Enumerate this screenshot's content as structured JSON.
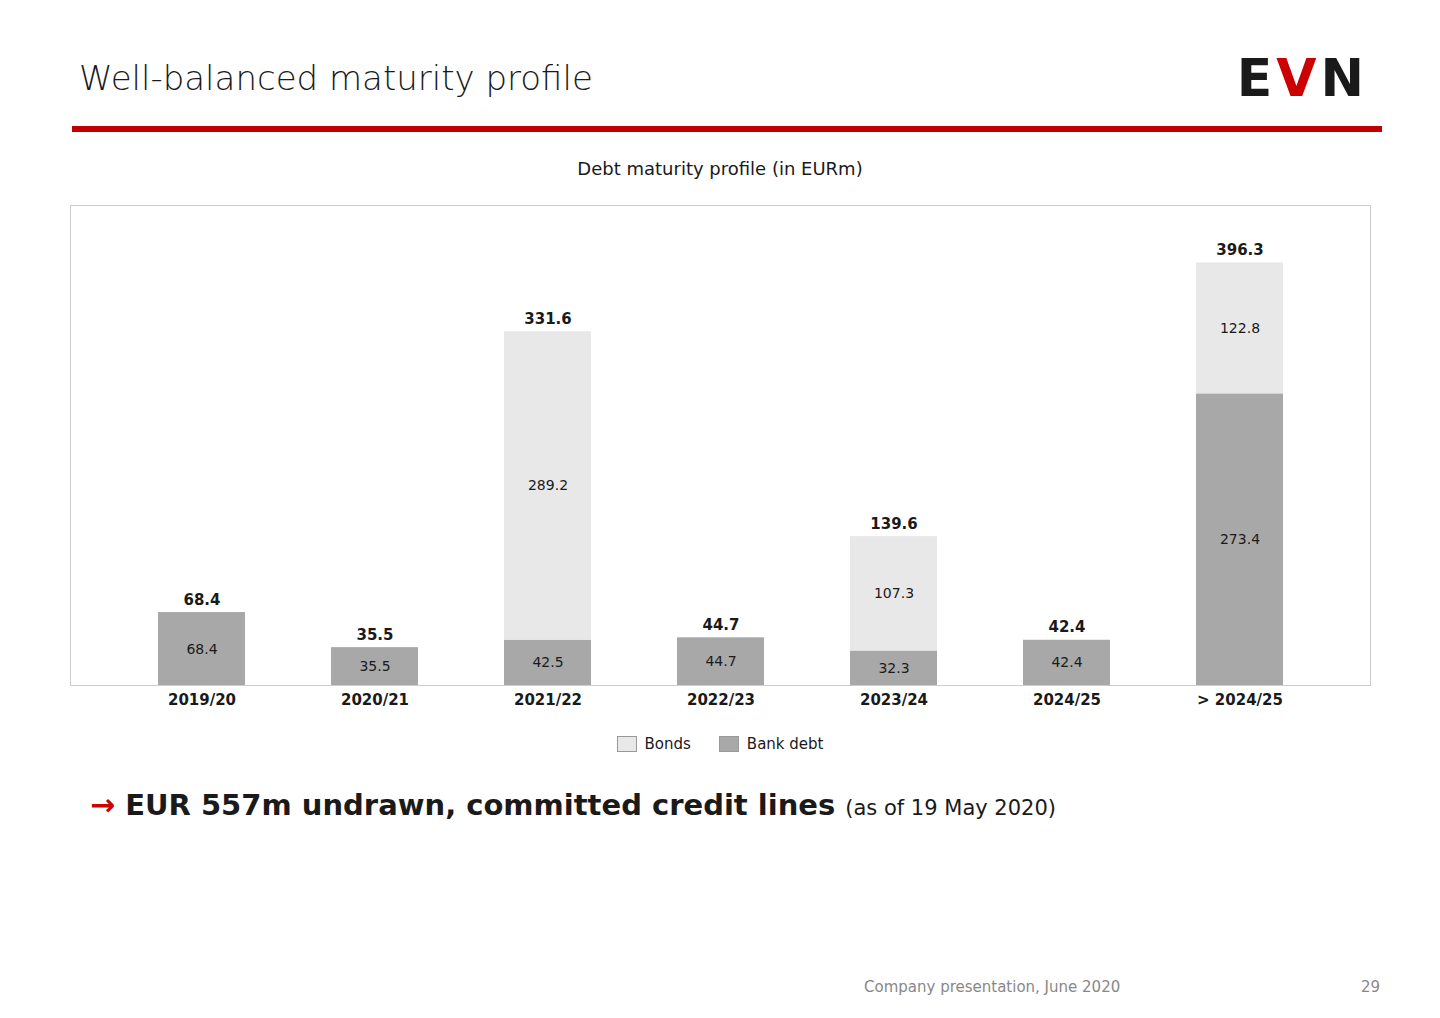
{
  "chart_data": {
    "type": "bar",
    "title": "Well-balanced maturity profile",
    "subtitle": "Debt maturity profile (in EURm)",
    "categories": [
      "2019/20",
      "2020/21",
      "2021/22",
      "2022/23",
      "2023/24",
      "2024/25",
      "> 2024/25"
    ],
    "series": [
      {
        "name": "Bank debt",
        "color": "#a8a8a8",
        "values": [
          68.4,
          35.5,
          42.5,
          44.7,
          32.3,
          42.4,
          273.4
        ]
      },
      {
        "name": "Bonds",
        "color": "#e8e8e8",
        "values": [
          null,
          null,
          289.2,
          null,
          107.3,
          null,
          122.8
        ]
      }
    ],
    "totals": [
      68.4,
      35.5,
      331.6,
      44.7,
      139.6,
      42.4,
      396.3
    ],
    "ylim": [
      0,
      450
    ],
    "stacked": true,
    "data_labels": true,
    "tick_labels": "x",
    "grid": false,
    "legend": "bottom",
    "annotations": [
      "EVN",
      "→",
      "EUR 557m undrawn, committed credit lines",
      "(as of 19 May 2020)",
      "Company presentation, June 2020",
      "29"
    ]
  }
}
